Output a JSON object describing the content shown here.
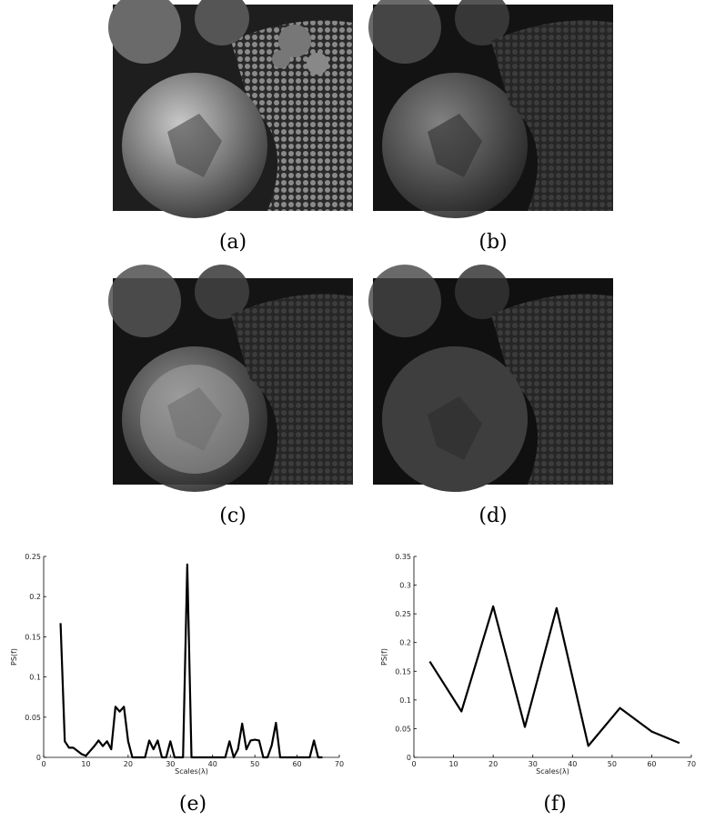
{
  "figure": {
    "captions": [
      "(a)",
      "(b)",
      "(c)",
      "(d)",
      "(e)",
      "(f)"
    ]
  },
  "chart_data": [
    {
      "type": "line",
      "xlabel": "Scales(λ)",
      "ylabel": "PS(f)",
      "color": "#000000",
      "grid": false,
      "xlim": [
        0,
        70
      ],
      "xticks": [
        0,
        10,
        20,
        30,
        40,
        50,
        60,
        70
      ],
      "ylim": [
        0,
        0.25
      ],
      "yticks": [
        0,
        0.05,
        0.1,
        0.15,
        0.2,
        0.25
      ],
      "x": [
        4,
        5,
        6,
        7,
        8,
        9,
        10,
        11,
        12,
        13,
        14,
        15,
        16,
        17,
        18,
        19,
        20,
        21,
        22,
        23,
        24,
        25,
        26,
        27,
        28,
        29,
        30,
        31,
        32,
        33,
        34,
        35,
        36,
        37,
        38,
        39,
        40,
        41,
        42,
        43,
        44,
        45,
        46,
        47,
        48,
        49,
        50,
        51,
        52,
        53,
        54,
        55,
        56,
        57,
        58,
        59,
        60,
        61,
        62,
        63,
        64,
        65,
        66
      ],
      "values": [
        0.167,
        0.02,
        0.012,
        0.012,
        0.008,
        0.004,
        0.002,
        0.008,
        0.014,
        0.021,
        0.014,
        0.02,
        0.01,
        0.063,
        0.057,
        0.063,
        0.02,
        0,
        0,
        0,
        0,
        0.021,
        0.01,
        0.021,
        0,
        0,
        0.02,
        0,
        0,
        0,
        0.24,
        0,
        0,
        0,
        0,
        0,
        0,
        0,
        0,
        0,
        0.02,
        0,
        0.01,
        0.042,
        0.01,
        0.021,
        0.022,
        0.021,
        0,
        0,
        0.015,
        0.043,
        0,
        0,
        0,
        0,
        0,
        0,
        0,
        0,
        0.021,
        0,
        0
      ]
    },
    {
      "type": "line",
      "xlabel": "Scales(λ)",
      "ylabel": "PS(f)",
      "color": "#000000",
      "grid": false,
      "xlim": [
        0,
        70
      ],
      "xticks": [
        0,
        10,
        20,
        30,
        40,
        50,
        60,
        70
      ],
      "ylim": [
        0,
        0.35
      ],
      "yticks": [
        0,
        0.05,
        0.1,
        0.15,
        0.2,
        0.25,
        0.3,
        0.35
      ],
      "x": [
        4,
        12,
        20,
        28,
        36,
        44,
        52,
        60,
        67
      ],
      "values": [
        0.167,
        0.08,
        0.263,
        0.053,
        0.26,
        0.02,
        0.086,
        0.045,
        0.025
      ]
    }
  ]
}
